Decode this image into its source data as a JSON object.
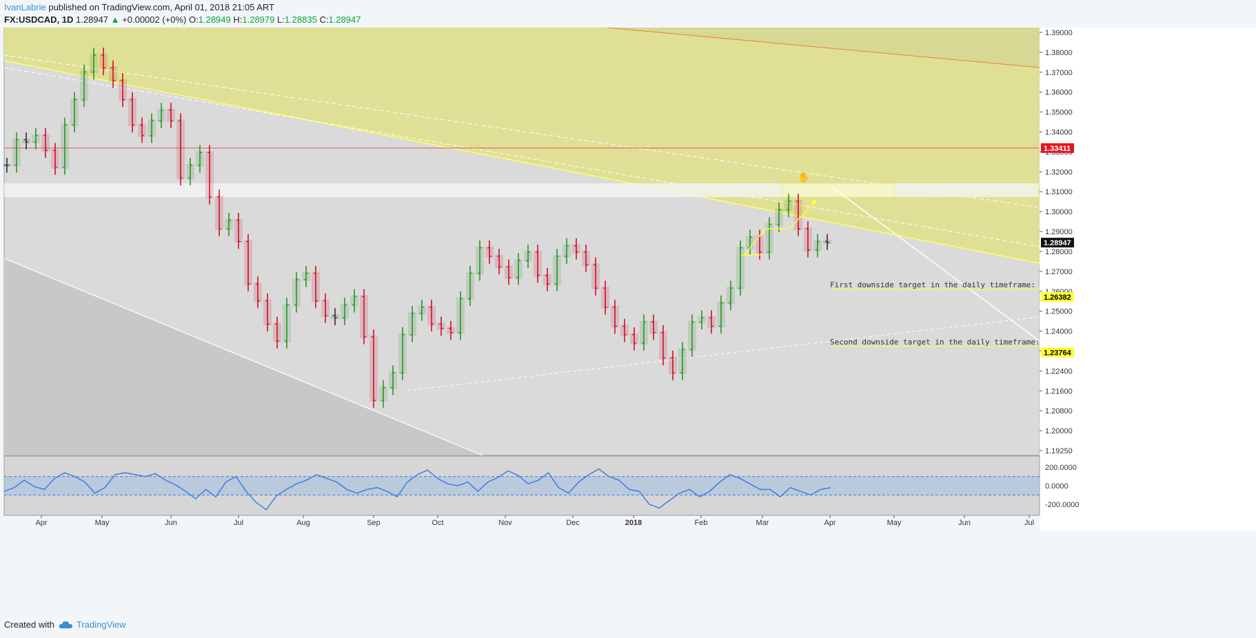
{
  "header": {
    "author": "IvanLabrie",
    "published": "published on TradingView.com, April 01, 2018 21:05 ART",
    "symbol": "FX:USDCAD, 1D",
    "last": "1.28947",
    "change_arrow": "▲",
    "change": "+0.00002 (+0%)",
    "o_label": "O:",
    "o": "1.28949",
    "h_label": "H:",
    "h": "1.28979",
    "l_label": "L:",
    "l": "1.28835",
    "c_label": "C:",
    "c": "1.28947"
  },
  "footer": {
    "created_with": "Created with",
    "brand": "TradingView",
    "logo_icon": "tradingview-cloud-icon"
  },
  "colors": {
    "up": "#1e8c1e",
    "down": "#d0001a",
    "neutral": "#222222",
    "channel_fill": "#dfe08a",
    "zone_fill": "#f6f6c8",
    "resistance": "#f05050",
    "price_tag": "#111111",
    "target_tag": "#ffff33",
    "cci": "#3a7fe0"
  },
  "chart_data": [
    {
      "type": "line",
      "subtype": "daily price bars (OHLC)",
      "x_ticks": [
        "Apr",
        "May",
        "Jun",
        "Jul",
        "Aug",
        "Sep",
        "Oct",
        "Nov",
        "Dec",
        "2018",
        "Feb",
        "Mar",
        "Apr",
        "May",
        "Jun",
        "Jul"
      ],
      "y_ticks": [
        "1.39000",
        "1.38000",
        "1.37000",
        "1.36000",
        "1.35000",
        "1.34000",
        "1.33000",
        "1.32000",
        "1.31000",
        "1.30000",
        "1.29000",
        "1.28000",
        "1.27000",
        "1.26000",
        "1.25000",
        "1.24000",
        "1.23200",
        "1.22400",
        "1.21600",
        "1.20800",
        "1.20000",
        "1.19250"
      ],
      "ylim": [
        1.189,
        1.391
      ],
      "closes_approx": [
        1.326,
        1.338,
        1.337,
        1.34,
        1.333,
        1.325,
        1.345,
        1.357,
        1.37,
        1.378,
        1.372,
        1.366,
        1.357,
        1.345,
        1.34,
        1.347,
        1.352,
        1.347,
        1.32,
        1.326,
        1.332,
        1.311,
        1.296,
        1.3,
        1.29,
        1.27,
        1.262,
        1.251,
        1.243,
        1.26,
        1.272,
        1.275,
        1.262,
        1.255,
        1.254,
        1.26,
        1.264,
        1.245,
        1.215,
        1.221,
        1.228,
        1.246,
        1.256,
        1.259,
        1.251,
        1.249,
        1.247,
        1.263,
        1.275,
        1.287,
        1.283,
        1.278,
        1.273,
        1.281,
        1.285,
        1.274,
        1.27,
        1.283,
        1.288,
        1.285,
        1.279,
        1.268,
        1.259,
        1.25,
        1.246,
        1.242,
        1.252,
        1.247,
        1.235,
        1.228,
        1.239,
        1.252,
        1.254,
        1.25,
        1.261,
        1.268,
        1.287,
        1.292,
        1.285,
        1.298,
        1.305,
        1.309,
        1.296,
        1.286,
        1.29,
        1.2895
      ],
      "price_tags": [
        {
          "label": "1.33411",
          "value": 1.33411,
          "kind": "resistance"
        },
        {
          "label": "1.28947",
          "value": 1.28947,
          "kind": "last"
        },
        {
          "label": "1.26382",
          "value": 1.26382,
          "kind": "target"
        },
        {
          "label": "1.23764",
          "value": 1.23764,
          "kind": "target"
        }
      ],
      "annotations": [
        "First downside target in the daily timeframe: 1.26382",
        "Second downside target in the daily timeframe: 1.23764"
      ]
    },
    {
      "type": "line",
      "subtype": "oscillator",
      "y_ticks": [
        "200.0000",
        "0.0000",
        "-200.0000"
      ],
      "ylim": [
        -320,
        320
      ],
      "band": [
        100,
        -100
      ],
      "values_approx": [
        -60,
        -20,
        60,
        -10,
        -40,
        80,
        140,
        100,
        40,
        -80,
        -20,
        120,
        140,
        120,
        100,
        130,
        60,
        10,
        -60,
        -140,
        -40,
        -120,
        40,
        100,
        -60,
        -180,
        -260,
        -110,
        -40,
        20,
        60,
        120,
        80,
        40,
        -40,
        -80,
        -40,
        -20,
        -60,
        -120,
        40,
        120,
        170,
        80,
        20,
        0,
        40,
        -60,
        40,
        90,
        160,
        110,
        20,
        60,
        140,
        -20,
        -80,
        40,
        120,
        180,
        100,
        60,
        -40,
        -60,
        -200,
        -240,
        -160,
        -80,
        -40,
        -120,
        -60,
        40,
        120,
        80,
        20,
        -40,
        -40,
        -120,
        -20,
        -60,
        -100,
        -40,
        -20
      ]
    }
  ]
}
